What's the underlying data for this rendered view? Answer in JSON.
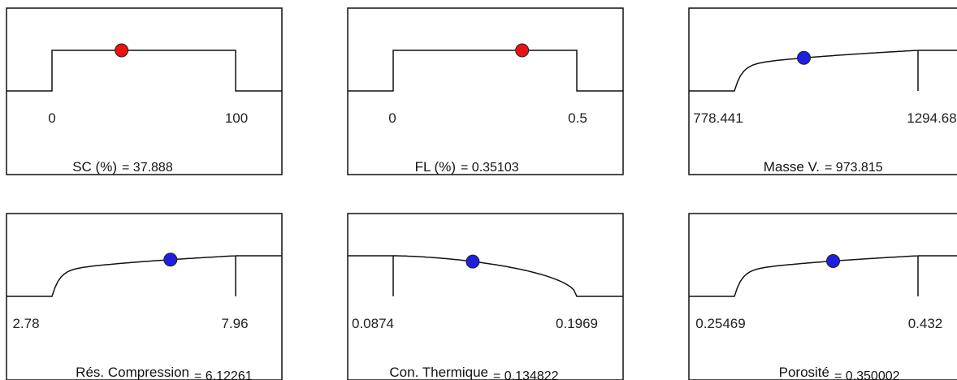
{
  "colors": {
    "highlight_dot": "#ee1111",
    "normal_dot": "#1f1fe0",
    "line": "#111111"
  },
  "panels": [
    {
      "name": "SC (%)",
      "value": "37.888",
      "low_label": "0",
      "high_label": "100",
      "dot_color": "#ee1111"
    },
    {
      "name": "FL (%)",
      "value": "0.35103",
      "low_label": "0",
      "high_label": "0.5",
      "dot_color": "#ee1111"
    },
    {
      "name": "Masse V.",
      "value": "973.815",
      "low_label": "778.441",
      "high_label": "1294.68",
      "dot_color": "#1f1fe0"
    },
    {
      "name": "Rés. Compression",
      "value": "6.12261",
      "low_label": "2.78",
      "high_label": "7.96",
      "dot_color": "#1f1fe0"
    },
    {
      "name": "Con. Thermique",
      "value": "0.134822",
      "low_label": "0.0874",
      "high_label": "0.1969",
      "dot_color": "#1f1fe0"
    },
    {
      "name": "Porosité",
      "value": "0.350002",
      "low_label": "0.25469",
      "high_label": "0.432",
      "dot_color": "#1f1fe0"
    }
  ],
  "chart_data": [
    {
      "type": "line",
      "title": "SC (%) = 37.888",
      "shape": "flat-top",
      "range": [
        0,
        100
      ],
      "current": 37.888
    },
    {
      "type": "line",
      "title": "FL (%) = 0.35103",
      "shape": "flat-top",
      "range": [
        0,
        0.5
      ],
      "current": 0.35103
    },
    {
      "type": "line",
      "title": "Masse V. = 973.815",
      "shape": "rising-concave",
      "range": [
        778.441,
        1294.68
      ],
      "current": 973.815
    },
    {
      "type": "line",
      "title": "Rés. Compression = 6.12261",
      "shape": "rising-concave",
      "range": [
        2.78,
        7.96
      ],
      "current": 6.12261
    },
    {
      "type": "line",
      "title": "Con. Thermique = 0.134822",
      "shape": "falling-concave",
      "range": [
        0.0874,
        0.1969
      ],
      "current": 0.134822
    },
    {
      "type": "line",
      "title": "Porosité = 0.350002",
      "shape": "rising-concave",
      "range": [
        0.25469,
        0.432
      ],
      "current": 0.350002
    }
  ]
}
